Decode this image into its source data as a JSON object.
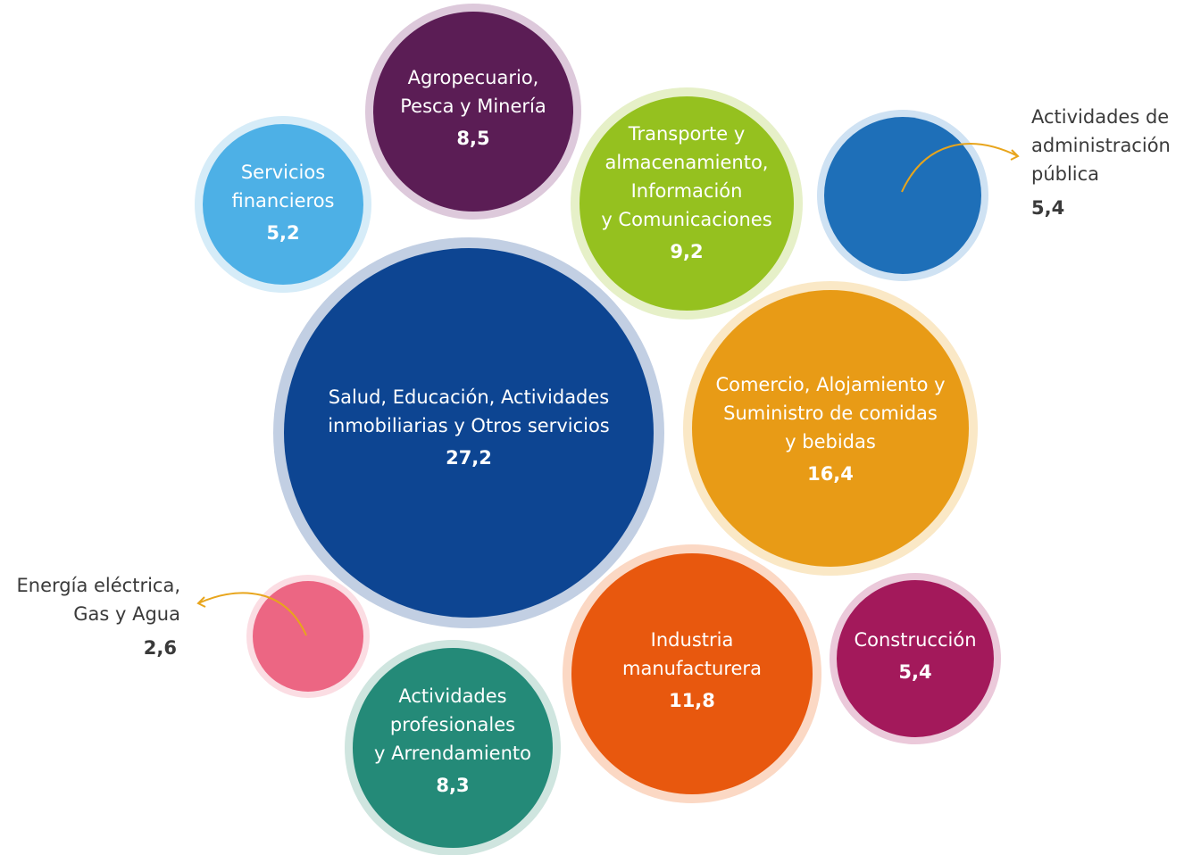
{
  "chart_data": {
    "type": "bubble",
    "unit": "",
    "items": [
      {
        "key": "salud",
        "lines": [
          "Salud, Educación, Actividades",
          "inmobiliarias y Otros servicios"
        ],
        "value": "27,2",
        "amount": 27.2,
        "color": "#0d4592",
        "ring": "#c2cfe3"
      },
      {
        "key": "comercio",
        "lines": [
          "Comercio,  Alojamiento y",
          "Suministro de comidas",
          "y bebidas"
        ],
        "value": "16,4",
        "amount": 16.4,
        "color": "#e89b16",
        "ring": "#fae8c6"
      },
      {
        "key": "industria",
        "lines": [
          "Industria",
          "manufacturera"
        ],
        "value": "11,8",
        "amount": 11.8,
        "color": "#e8580e",
        "ring": "#fbd8c4"
      },
      {
        "key": "transporte",
        "lines": [
          "Transporte y",
          "almacenamiento,",
          "Información",
          "y Comunicaciones"
        ],
        "value": "9,2",
        "amount": 9.2,
        "color": "#95c11f",
        "ring": "#e6f0c8"
      },
      {
        "key": "agropecuario",
        "lines": [
          "Agropecuario,",
          "Pesca y Minería"
        ],
        "value": "8,5",
        "amount": 8.5,
        "color": "#5b1d55",
        "ring": "#ddc9db"
      },
      {
        "key": "profesionales",
        "lines": [
          "Actividades",
          "profesionales",
          "y Arrendamiento"
        ],
        "value": "8,3",
        "amount": 8.3,
        "color": "#248a78",
        "ring": "#cfe5df"
      },
      {
        "key": "construccion",
        "lines": [
          "Construcción"
        ],
        "value": "5,4",
        "amount": 5.4,
        "color": "#a3195b",
        "ring": "#ebc9da"
      },
      {
        "key": "financieros",
        "lines": [
          "Servicios",
          "financieros"
        ],
        "value": "5,2",
        "amount": 5.2,
        "color": "#4db0e6",
        "ring": "#d6ecf8"
      },
      {
        "key": "administracion",
        "lines": [
          "Actividades de",
          "administración",
          "pública"
        ],
        "value": "5,4",
        "amount": 5.4,
        "color": "#1e6fb8",
        "ring": "#cfe2f3",
        "label_outside": true
      },
      {
        "key": "energia",
        "lines": [
          "Energía eléctrica,",
          "Gas y Agua"
        ],
        "value": "2,6",
        "amount": 2.6,
        "color": "#ec6683",
        "ring": "#fbdde3",
        "label_outside": true
      }
    ],
    "arrow_color": "#e8a51c"
  }
}
